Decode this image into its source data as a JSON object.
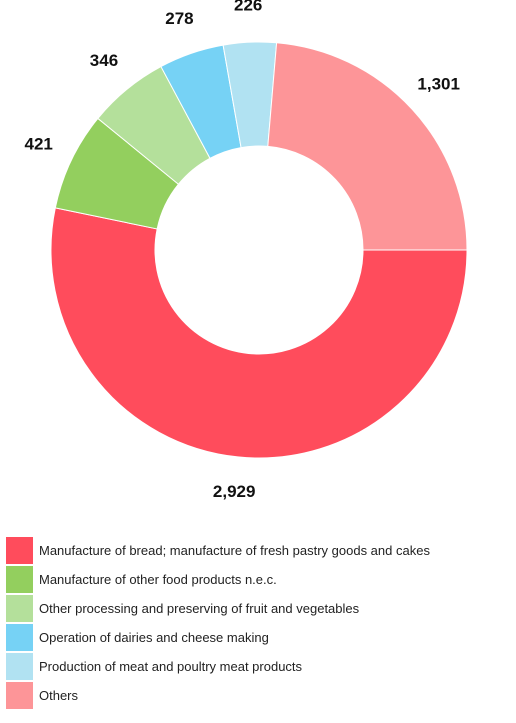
{
  "chart_data": {
    "type": "pie",
    "donut": true,
    "legend_position": "bottom-left",
    "categories": [
      "Manufacture of bread; manufacture of fresh pastry goods and cakes",
      "Manufacture of other food products n.e.c.",
      "Other processing and preserving of fruit and vegetables",
      "Operation of dairies and cheese making",
      "Production of meat and poultry meat products",
      "Others"
    ],
    "values": [
      2929,
      421,
      346,
      278,
      226,
      1301
    ],
    "value_labels": [
      "2,929",
      "421",
      "346",
      "278",
      "226",
      "1,301"
    ],
    "colors": [
      "#ff4c5c",
      "#93cf5e",
      "#b4e09b",
      "#76d2f5",
      "#b1e2f2",
      "#fd9598"
    ]
  }
}
